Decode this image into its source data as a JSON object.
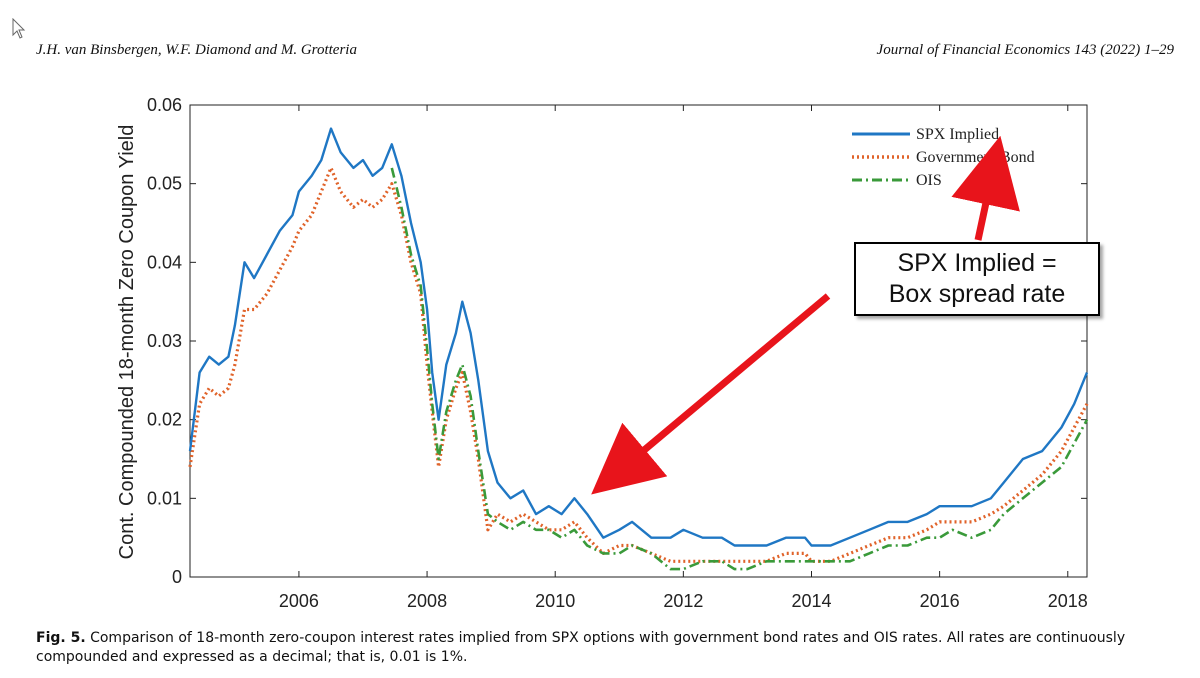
{
  "header": {
    "authors": "J.H. van Binsbergen, W.F. Diamond and M. Grotteria",
    "journal": "Journal of Financial Economics 143 (2022) 1–29"
  },
  "caption": {
    "label": "Fig. 5.",
    "text": "Comparison of 18-month zero-coupon interest rates implied from SPX options with government bond rates and OIS rates. All rates are continuously compounded and expressed as a decimal; that is, 0.01 is 1%."
  },
  "callout": {
    "line1": "SPX Implied =",
    "line2": "Box spread rate"
  },
  "colors": {
    "spx": "#1f77c4",
    "gov": "#e0632a",
    "ois": "#3a9a3a",
    "arrow": "#e8141b"
  },
  "chart_data": {
    "type": "line",
    "title": "",
    "xlabel": "",
    "ylabel": "Cont. Compounded 18-month Zero Coupon Yield",
    "xlim": [
      2004.3,
      2018.3
    ],
    "ylim": [
      0,
      0.06
    ],
    "xticks": [
      2006,
      2008,
      2010,
      2012,
      2014,
      2016,
      2018
    ],
    "xtick_labels": [
      "2006",
      "2008",
      "2010",
      "2012",
      "2014",
      "2016",
      "2018"
    ],
    "yticks": [
      0,
      0.01,
      0.02,
      0.03,
      0.04,
      0.05,
      0.06
    ],
    "ytick_labels": [
      "0",
      "0.01",
      "0.02",
      "0.03",
      "0.04",
      "0.05",
      "0.06"
    ],
    "legend_position": "top-right",
    "series": [
      {
        "name": "SPX Implied",
        "style": "solid",
        "points": [
          [
            2004.3,
            0.016
          ],
          [
            2004.45,
            0.026
          ],
          [
            2004.6,
            0.028
          ],
          [
            2004.75,
            0.027
          ],
          [
            2004.9,
            0.028
          ],
          [
            2005.0,
            0.032
          ],
          [
            2005.15,
            0.04
          ],
          [
            2005.3,
            0.038
          ],
          [
            2005.5,
            0.041
          ],
          [
            2005.7,
            0.044
          ],
          [
            2005.9,
            0.046
          ],
          [
            2006.0,
            0.049
          ],
          [
            2006.2,
            0.051
          ],
          [
            2006.35,
            0.053
          ],
          [
            2006.5,
            0.057
          ],
          [
            2006.65,
            0.054
          ],
          [
            2006.85,
            0.052
          ],
          [
            2007.0,
            0.053
          ],
          [
            2007.15,
            0.051
          ],
          [
            2007.3,
            0.052
          ],
          [
            2007.45,
            0.055
          ],
          [
            2007.6,
            0.051
          ],
          [
            2007.75,
            0.045
          ],
          [
            2007.9,
            0.04
          ],
          [
            2008.0,
            0.034
          ],
          [
            2008.08,
            0.026
          ],
          [
            2008.18,
            0.02
          ],
          [
            2008.3,
            0.027
          ],
          [
            2008.45,
            0.031
          ],
          [
            2008.55,
            0.035
          ],
          [
            2008.68,
            0.031
          ],
          [
            2008.8,
            0.025
          ],
          [
            2008.95,
            0.016
          ],
          [
            2009.1,
            0.012
          ],
          [
            2009.3,
            0.01
          ],
          [
            2009.5,
            0.011
          ],
          [
            2009.7,
            0.008
          ],
          [
            2009.9,
            0.009
          ],
          [
            2010.1,
            0.008
          ],
          [
            2010.3,
            0.01
          ],
          [
            2010.5,
            0.008
          ],
          [
            2010.75,
            0.005
          ],
          [
            2011.0,
            0.006
          ],
          [
            2011.2,
            0.007
          ],
          [
            2011.5,
            0.005
          ],
          [
            2011.8,
            0.005
          ],
          [
            2012.0,
            0.006
          ],
          [
            2012.3,
            0.005
          ],
          [
            2012.6,
            0.005
          ],
          [
            2012.8,
            0.004
          ],
          [
            2013.0,
            0.004
          ],
          [
            2013.3,
            0.004
          ],
          [
            2013.6,
            0.005
          ],
          [
            2013.9,
            0.005
          ],
          [
            2014.0,
            0.004
          ],
          [
            2014.3,
            0.004
          ],
          [
            2014.6,
            0.005
          ],
          [
            2014.9,
            0.006
          ],
          [
            2015.2,
            0.007
          ],
          [
            2015.5,
            0.007
          ],
          [
            2015.8,
            0.008
          ],
          [
            2016.0,
            0.009
          ],
          [
            2016.2,
            0.009
          ],
          [
            2016.5,
            0.009
          ],
          [
            2016.8,
            0.01
          ],
          [
            2017.0,
            0.012
          ],
          [
            2017.3,
            0.015
          ],
          [
            2017.6,
            0.016
          ],
          [
            2017.9,
            0.019
          ],
          [
            2018.1,
            0.022
          ],
          [
            2018.3,
            0.026
          ]
        ]
      },
      {
        "name": "Government Bond",
        "style": "dotted",
        "points": [
          [
            2004.3,
            0.014
          ],
          [
            2004.45,
            0.022
          ],
          [
            2004.6,
            0.024
          ],
          [
            2004.75,
            0.023
          ],
          [
            2004.9,
            0.024
          ],
          [
            2005.0,
            0.027
          ],
          [
            2005.15,
            0.034
          ],
          [
            2005.3,
            0.034
          ],
          [
            2005.5,
            0.036
          ],
          [
            2005.7,
            0.039
          ],
          [
            2005.9,
            0.042
          ],
          [
            2006.0,
            0.044
          ],
          [
            2006.2,
            0.046
          ],
          [
            2006.35,
            0.049
          ],
          [
            2006.5,
            0.052
          ],
          [
            2006.65,
            0.049
          ],
          [
            2006.85,
            0.047
          ],
          [
            2007.0,
            0.048
          ],
          [
            2007.15,
            0.047
          ],
          [
            2007.3,
            0.048
          ],
          [
            2007.45,
            0.05
          ],
          [
            2007.6,
            0.046
          ],
          [
            2007.75,
            0.04
          ],
          [
            2007.9,
            0.036
          ],
          [
            2008.0,
            0.027
          ],
          [
            2008.08,
            0.021
          ],
          [
            2008.18,
            0.014
          ],
          [
            2008.3,
            0.02
          ],
          [
            2008.45,
            0.024
          ],
          [
            2008.55,
            0.026
          ],
          [
            2008.68,
            0.021
          ],
          [
            2008.8,
            0.015
          ],
          [
            2008.95,
            0.006
          ],
          [
            2009.1,
            0.008
          ],
          [
            2009.3,
            0.007
          ],
          [
            2009.5,
            0.008
          ],
          [
            2009.7,
            0.007
          ],
          [
            2009.9,
            0.006
          ],
          [
            2010.1,
            0.006
          ],
          [
            2010.3,
            0.007
          ],
          [
            2010.5,
            0.005
          ],
          [
            2010.75,
            0.003
          ],
          [
            2011.0,
            0.004
          ],
          [
            2011.2,
            0.004
          ],
          [
            2011.5,
            0.003
          ],
          [
            2011.8,
            0.002
          ],
          [
            2012.0,
            0.002
          ],
          [
            2012.3,
            0.002
          ],
          [
            2012.6,
            0.002
          ],
          [
            2012.8,
            0.002
          ],
          [
            2013.0,
            0.002
          ],
          [
            2013.3,
            0.002
          ],
          [
            2013.6,
            0.003
          ],
          [
            2013.9,
            0.003
          ],
          [
            2014.0,
            0.002
          ],
          [
            2014.3,
            0.002
          ],
          [
            2014.6,
            0.003
          ],
          [
            2014.9,
            0.004
          ],
          [
            2015.2,
            0.005
          ],
          [
            2015.5,
            0.005
          ],
          [
            2015.8,
            0.006
          ],
          [
            2016.0,
            0.007
          ],
          [
            2016.2,
            0.007
          ],
          [
            2016.5,
            0.007
          ],
          [
            2016.8,
            0.008
          ],
          [
            2017.0,
            0.009
          ],
          [
            2017.3,
            0.011
          ],
          [
            2017.6,
            0.013
          ],
          [
            2017.9,
            0.016
          ],
          [
            2018.1,
            0.019
          ],
          [
            2018.3,
            0.022
          ]
        ]
      },
      {
        "name": "OIS",
        "style": "dashdot",
        "points": [
          [
            2007.45,
            0.052
          ],
          [
            2007.6,
            0.047
          ],
          [
            2007.75,
            0.041
          ],
          [
            2007.9,
            0.037
          ],
          [
            2008.0,
            0.029
          ],
          [
            2008.08,
            0.022
          ],
          [
            2008.18,
            0.015
          ],
          [
            2008.3,
            0.021
          ],
          [
            2008.45,
            0.025
          ],
          [
            2008.55,
            0.027
          ],
          [
            2008.68,
            0.023
          ],
          [
            2008.8,
            0.016
          ],
          [
            2008.95,
            0.008
          ],
          [
            2009.1,
            0.007
          ],
          [
            2009.3,
            0.006
          ],
          [
            2009.5,
            0.007
          ],
          [
            2009.7,
            0.006
          ],
          [
            2009.9,
            0.006
          ],
          [
            2010.1,
            0.005
          ],
          [
            2010.3,
            0.006
          ],
          [
            2010.5,
            0.004
          ],
          [
            2010.75,
            0.003
          ],
          [
            2011.0,
            0.003
          ],
          [
            2011.2,
            0.004
          ],
          [
            2011.5,
            0.003
          ],
          [
            2011.8,
            0.001
          ],
          [
            2012.0,
            0.001
          ],
          [
            2012.3,
            0.002
          ],
          [
            2012.6,
            0.002
          ],
          [
            2012.8,
            0.001
          ],
          [
            2013.0,
            0.001
          ],
          [
            2013.3,
            0.002
          ],
          [
            2013.6,
            0.002
          ],
          [
            2013.9,
            0.002
          ],
          [
            2014.0,
            0.002
          ],
          [
            2014.3,
            0.002
          ],
          [
            2014.6,
            0.002
          ],
          [
            2014.9,
            0.003
          ],
          [
            2015.2,
            0.004
          ],
          [
            2015.5,
            0.004
          ],
          [
            2015.8,
            0.005
          ],
          [
            2016.0,
            0.005
          ],
          [
            2016.2,
            0.006
          ],
          [
            2016.5,
            0.005
          ],
          [
            2016.8,
            0.006
          ],
          [
            2017.0,
            0.008
          ],
          [
            2017.3,
            0.01
          ],
          [
            2017.6,
            0.012
          ],
          [
            2017.9,
            0.014
          ],
          [
            2018.1,
            0.017
          ],
          [
            2018.3,
            0.02
          ]
        ]
      }
    ]
  }
}
